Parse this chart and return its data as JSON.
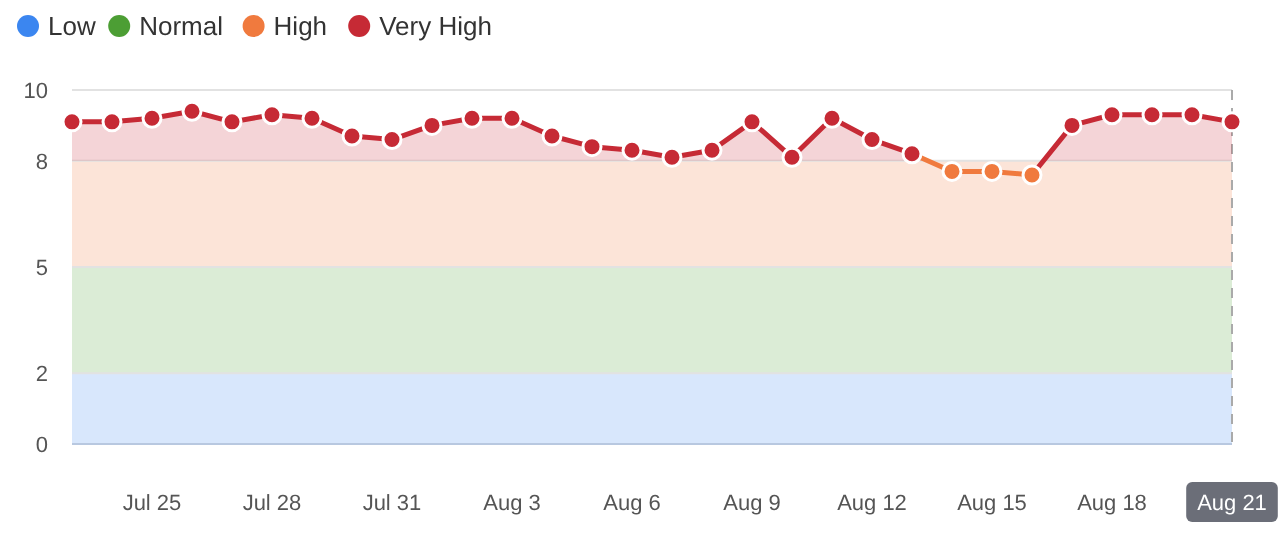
{
  "chart_data": {
    "type": "area",
    "x": [
      "--07-23",
      "--07-24",
      "--07-25",
      "--07-26",
      "--07-27",
      "--07-28",
      "--07-29",
      "--07-30",
      "--07-31",
      "--08-01",
      "--08-02",
      "--08-03",
      "--08-04",
      "--08-05",
      "--08-06",
      "--08-07",
      "--08-08",
      "--08-09",
      "--08-10",
      "--08-11",
      "--08-12",
      "--08-13",
      "--08-14",
      "--08-15",
      "--08-16",
      "--08-17",
      "--08-18",
      "--08-19",
      "--08-20",
      "--08-21"
    ],
    "series": [
      {
        "name": "Very High",
        "color": "#c62a35",
        "values": [
          9.1,
          9.1,
          9.2,
          9.4,
          9.1,
          9.3,
          9.2,
          8.7,
          8.6,
          9.0,
          9.2,
          9.2,
          8.7,
          8.4,
          8.3,
          8.1,
          8.3,
          9.1,
          8.1,
          9.2,
          8.6,
          8.2,
          7.7,
          7.7,
          7.6,
          9.0,
          9.3,
          9.3,
          9.3,
          9.1
        ],
        "colors": [
          "#c62a35",
          "#c62a35",
          "#c62a35",
          "#c62a35",
          "#c62a35",
          "#c62a35",
          "#c62a35",
          "#c62a35",
          "#c62a35",
          "#c62a35",
          "#c62a35",
          "#c62a35",
          "#c62a35",
          "#c62a35",
          "#c62a35",
          "#c62a35",
          "#c62a35",
          "#c62a35",
          "#c62a35",
          "#c62a35",
          "#c62a35",
          "#c62a35",
          "#f07a3e",
          "#f07a3e",
          "#f07a3e",
          "#c62a35",
          "#c62a35",
          "#c62a35",
          "#c62a35",
          "#c62a35"
        ]
      }
    ],
    "bands": [
      {
        "axis": "y",
        "from": 0,
        "to": 2,
        "label": "Low",
        "color": "#3b86f0"
      },
      {
        "axis": "y",
        "from": 2,
        "to": 5,
        "label": "Normal",
        "color": "#4c9e34"
      },
      {
        "axis": "y",
        "from": 5,
        "to": 8,
        "label": "High",
        "color": "#f07a3e"
      }
    ],
    "ref_lines": [
      {
        "axis": "x",
        "value": "--08-21",
        "line_style": "dashed",
        "color": "#aaaaaa"
      }
    ],
    "xlim": [
      "--07-23",
      "--08-21"
    ],
    "xticks": [
      {
        "value": "--07-25",
        "label": "Jul 25"
      },
      {
        "value": "--07-28",
        "label": "Jul 28"
      },
      {
        "value": "--07-31",
        "label": "Jul 31"
      },
      {
        "value": "--08-03",
        "label": "Aug 3"
      },
      {
        "value": "--08-06",
        "label": "Aug 6"
      },
      {
        "value": "--08-09",
        "label": "Aug 9"
      },
      {
        "value": "--08-12",
        "label": "Aug 12"
      },
      {
        "value": "--08-15",
        "label": "Aug 15"
      },
      {
        "value": "--08-18",
        "label": "Aug 18"
      },
      {
        "value": "--08-21",
        "label": "Aug 21"
      }
    ],
    "ylim": [
      0,
      10
    ],
    "yticks": [
      0,
      2,
      5,
      8,
      10
    ],
    "grid": "y",
    "legend": "top left",
    "marker": "circle",
    "line_style": "solid"
  }
}
